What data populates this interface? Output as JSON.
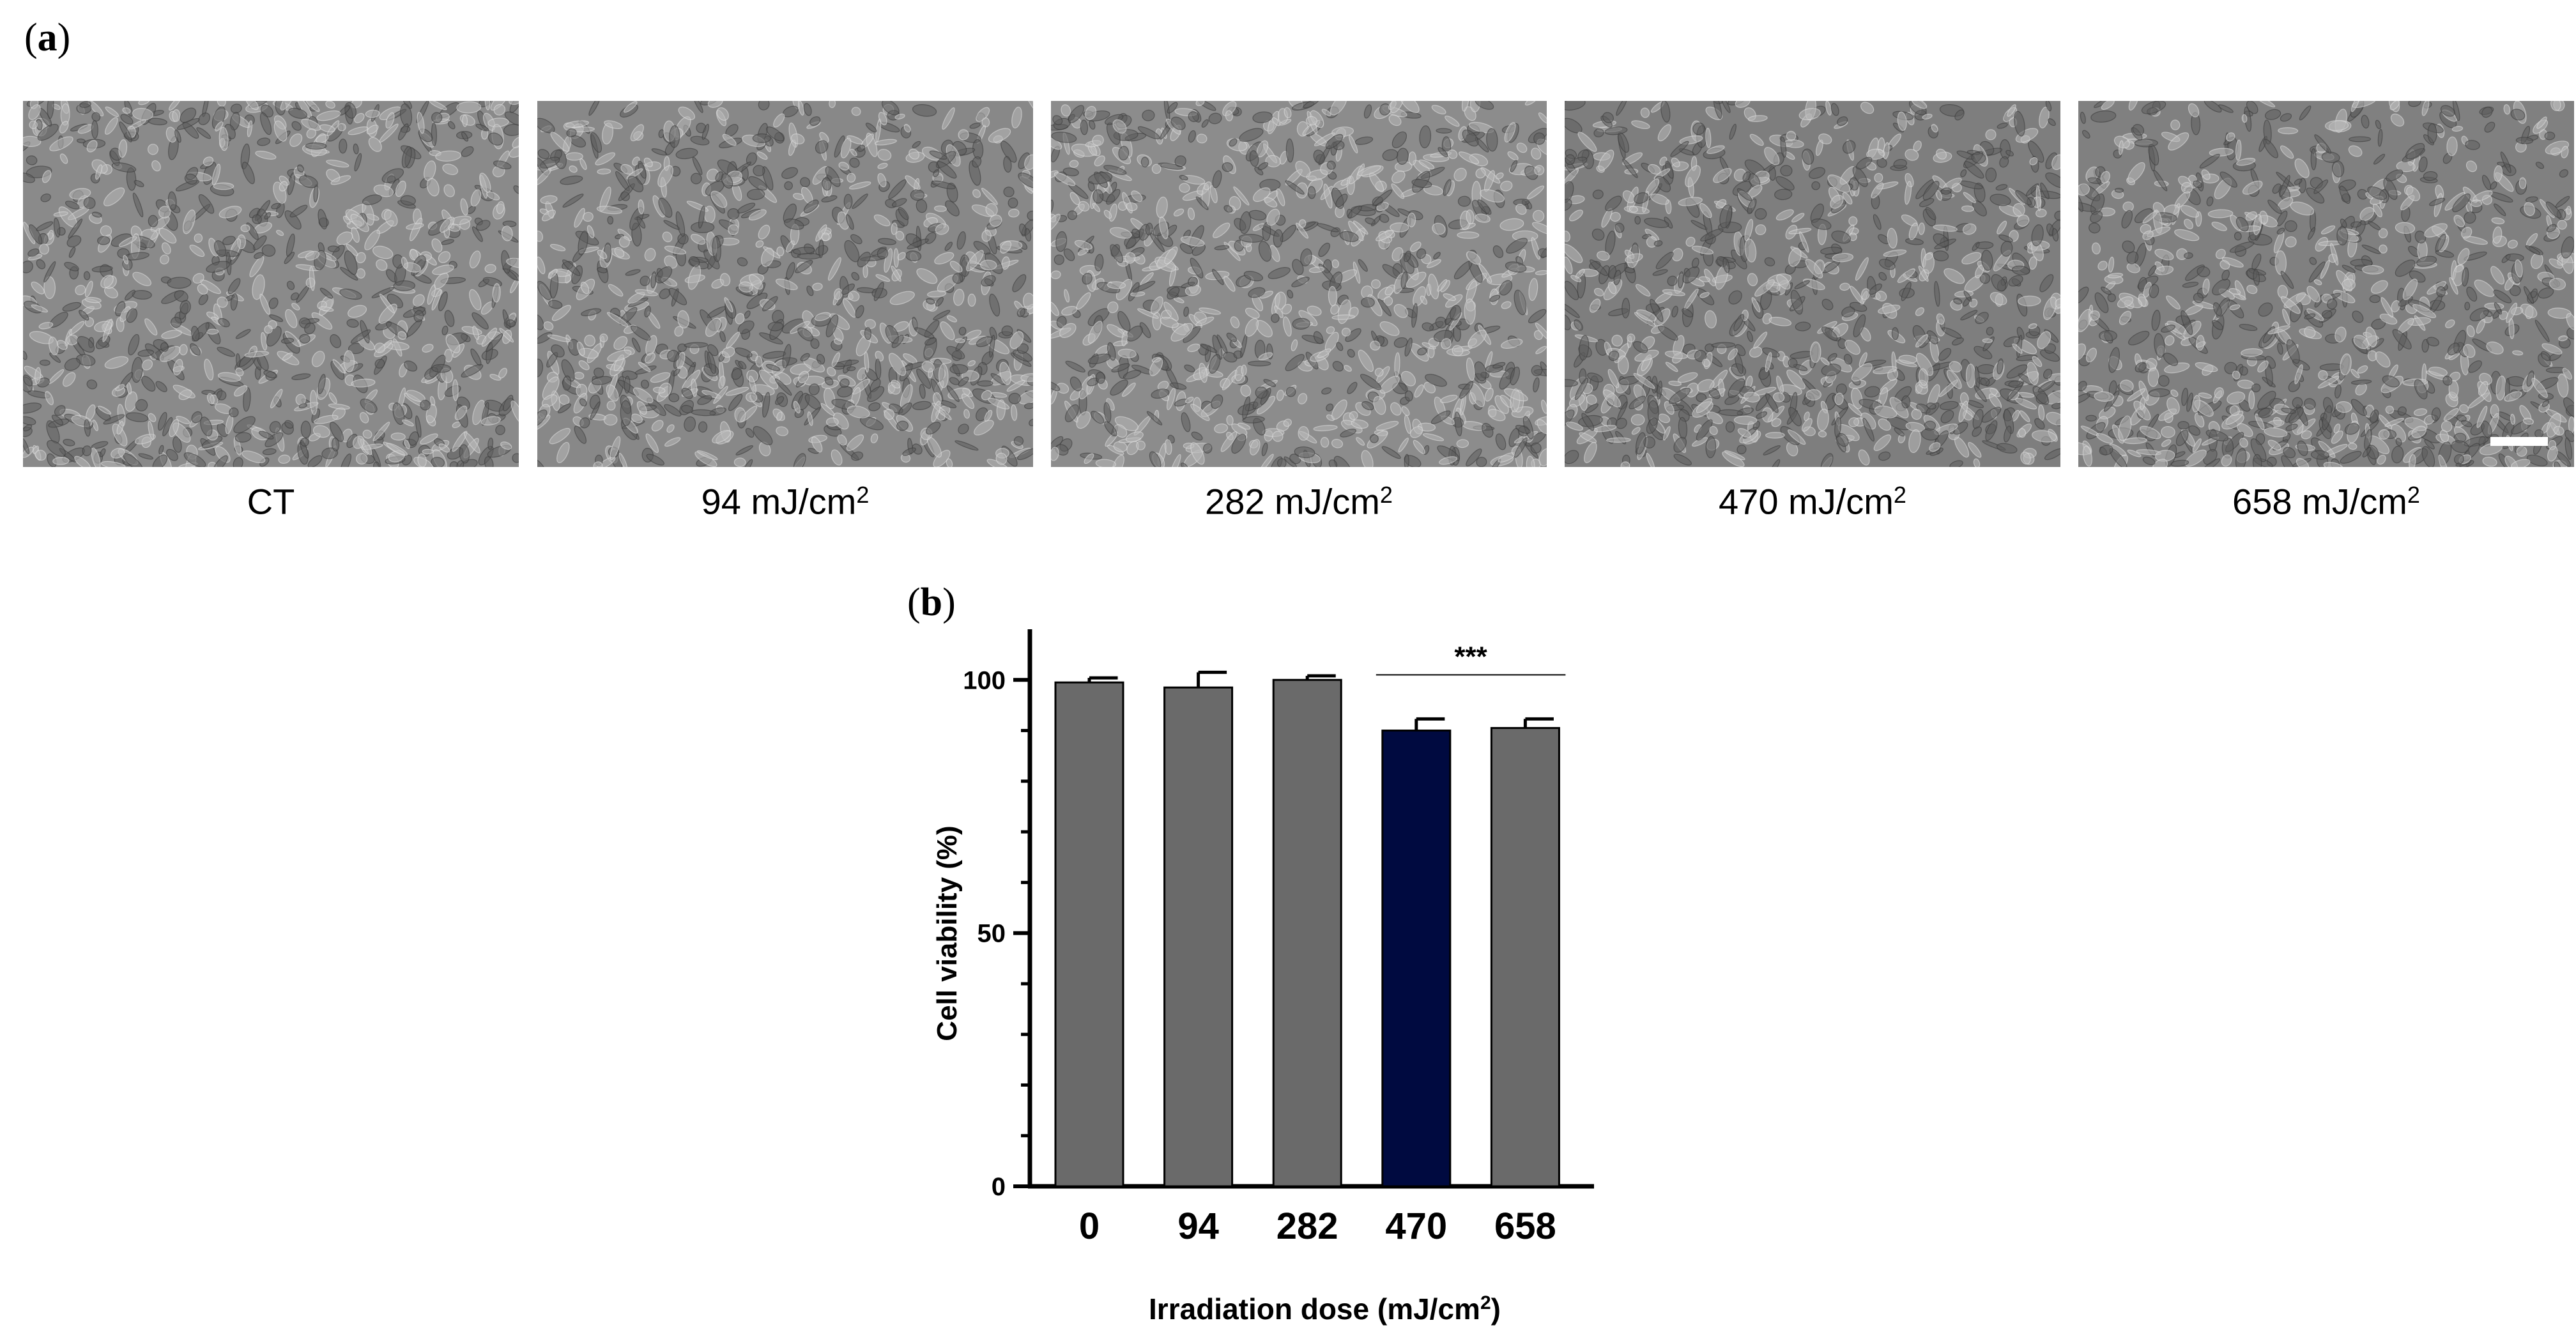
{
  "panel_a": {
    "label_letter": "a",
    "images": [
      {
        "caption": "CT",
        "caption_sup": "",
        "texture_seed": 11,
        "tone": "#8a8a8a"
      },
      {
        "caption": "94 mJ/cm",
        "caption_sup": "2",
        "texture_seed": 23,
        "tone": "#888888"
      },
      {
        "caption": "282 mJ/cm",
        "caption_sup": "2",
        "texture_seed": 37,
        "tone": "#8c8c8c"
      },
      {
        "caption": "470 mJ/cm",
        "caption_sup": "2",
        "texture_seed": 41,
        "tone": "#7e7e7e"
      },
      {
        "caption": "658 mJ/cm",
        "caption_sup": "2",
        "texture_seed": 53,
        "tone": "#808080"
      }
    ]
  },
  "panel_b": {
    "label_letter": "b"
  },
  "chart_data": {
    "type": "bar",
    "categories": [
      "0",
      "94",
      "282",
      "470",
      "658"
    ],
    "values": [
      99.5,
      98.5,
      100.0,
      90.0,
      90.5
    ],
    "errors": [
      0.9,
      3.0,
      0.8,
      2.3,
      1.8
    ],
    "bar_colors": [
      "#6a6a6a",
      "#6a6a6a",
      "#6a6a6a",
      "#000a40",
      "#6a6a6a"
    ],
    "ylabel": "Cell viability (%)",
    "xlabel_main": "Irradiation dose (mJ/cm",
    "xlabel_sup": "2",
    "xlabel_tail": ")",
    "ylim": [
      0,
      110
    ],
    "yticks_major": [
      0,
      50,
      100
    ],
    "yminor_step": 10,
    "significance": {
      "text": "***",
      "from_index": 3,
      "to_index": 4,
      "level": 101
    }
  }
}
